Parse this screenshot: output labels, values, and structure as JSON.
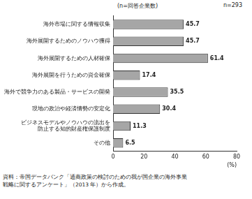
{
  "chart_data": {
    "type": "bar",
    "orientation": "horizontal",
    "annotations": [
      "(n=回答企業数)",
      "n=293"
    ],
    "x_label": "(%)",
    "source": "資料：帝国データバンク「通商政策の検討のための我が国企業の海外事業\n戦略に関するアンケート」（2013 年）から作成。",
    "categories": [
      "海外市場に関する情報収集",
      "海外展開するためのノウハウ獲得",
      "海外展開するための人材確保",
      "海外展開を行うための資金確保",
      "海外で競争力のある製品・サービスの開発",
      "現地の政治や経済情勢の安定化",
      "ビジネスモデルやノウハウの流出を\n防止する知的財産権保護制度",
      "その他"
    ],
    "values": [
      45.7,
      45.7,
      61.4,
      17.4,
      35.5,
      30.4,
      11.3,
      6.5
    ],
    "color": "#a6a6a6",
    "xlim": [
      0,
      80
    ],
    "xticks": [
      0,
      20,
      40,
      60,
      80
    ],
    "grid": false,
    "data_labels": true
  }
}
